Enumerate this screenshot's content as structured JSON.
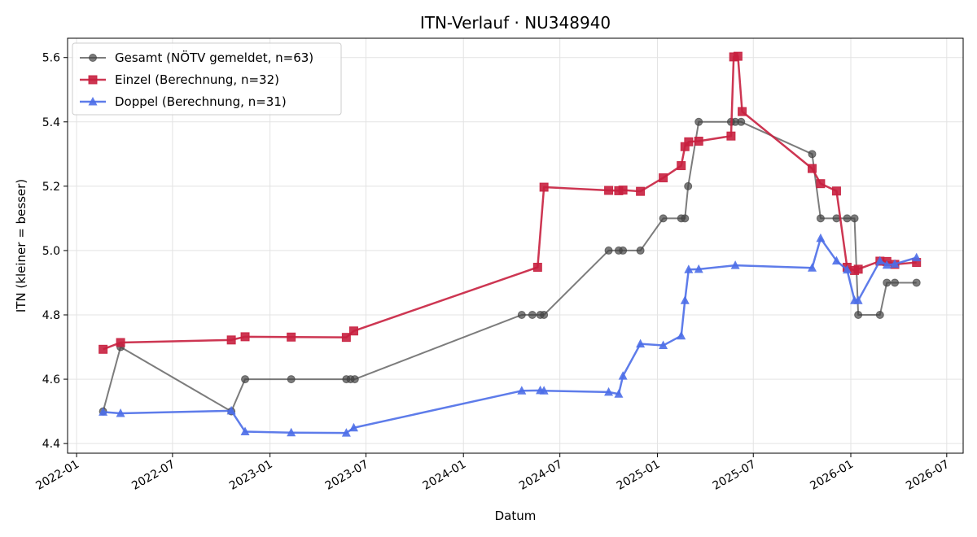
{
  "chart_data": {
    "type": "line",
    "title": "ITN-Verlauf · NU348940",
    "xlabel": "Datum",
    "ylabel": "ITN  (kleiner = besser)",
    "x_type": "date",
    "xlim": [
      "2021-12-15",
      "2026-08-01"
    ],
    "ylim": [
      4.37,
      5.66
    ],
    "x_ticks": [
      "2022-01",
      "2022-07",
      "2023-01",
      "2023-07",
      "2024-01",
      "2024-07",
      "2025-01",
      "2025-07",
      "2026-01",
      "2026-07"
    ],
    "y_ticks": [
      4.4,
      4.6,
      4.8,
      5.0,
      5.2,
      5.4,
      5.6
    ],
    "grid": true,
    "legend_position": "top-left",
    "series": [
      {
        "name": "Gesamt (NÖTV gemeldet, n=63)",
        "color": "#444444",
        "marker": "circle",
        "points": [
          [
            "2022-02-20",
            4.5
          ],
          [
            "2022-03-25",
            4.7
          ],
          [
            "2022-10-20",
            4.5
          ],
          [
            "2022-11-15",
            4.6
          ],
          [
            "2023-02-10",
            4.6
          ],
          [
            "2023-05-25",
            4.6
          ],
          [
            "2023-06-02",
            4.6
          ],
          [
            "2023-06-10",
            4.6
          ],
          [
            "2024-04-20",
            4.8
          ],
          [
            "2024-05-10",
            4.8
          ],
          [
            "2024-05-25",
            4.8
          ],
          [
            "2024-06-01",
            4.8
          ],
          [
            "2024-10-01",
            5.0
          ],
          [
            "2024-10-20",
            5.0
          ],
          [
            "2024-10-28",
            5.0
          ],
          [
            "2024-11-30",
            5.0
          ],
          [
            "2025-01-12",
            5.1
          ],
          [
            "2025-02-15",
            5.1
          ],
          [
            "2025-02-22",
            5.1
          ],
          [
            "2025-02-28",
            5.2
          ],
          [
            "2025-03-20",
            5.4
          ],
          [
            "2025-05-20",
            5.4
          ],
          [
            "2025-05-28",
            5.4
          ],
          [
            "2025-06-08",
            5.4
          ],
          [
            "2025-10-20",
            5.3
          ],
          [
            "2025-11-05",
            5.1
          ],
          [
            "2025-12-05",
            5.1
          ],
          [
            "2025-12-25",
            5.1
          ],
          [
            "2026-01-08",
            5.1
          ],
          [
            "2026-01-15",
            4.8
          ],
          [
            "2026-02-25",
            4.8
          ],
          [
            "2026-03-10",
            4.9
          ],
          [
            "2026-03-25",
            4.9
          ],
          [
            "2026-05-05",
            4.9
          ]
        ]
      },
      {
        "name": "Einzel (Berechnung, n=32)",
        "color": "#c8203f",
        "marker": "square",
        "points": [
          [
            "2022-02-20",
            4.693
          ],
          [
            "2022-03-25",
            4.714
          ],
          [
            "2022-10-20",
            4.722
          ],
          [
            "2022-11-15",
            4.732
          ],
          [
            "2023-02-10",
            4.731
          ],
          [
            "2023-05-25",
            4.73
          ],
          [
            "2023-06-08",
            4.75
          ],
          [
            "2024-05-20",
            4.948
          ],
          [
            "2024-06-01",
            5.197
          ],
          [
            "2024-10-01",
            5.187
          ],
          [
            "2024-10-20",
            5.186
          ],
          [
            "2024-10-28",
            5.188
          ],
          [
            "2024-11-30",
            5.184
          ],
          [
            "2025-01-12",
            5.226
          ],
          [
            "2025-02-15",
            5.264
          ],
          [
            "2025-02-22",
            5.323
          ],
          [
            "2025-03-01",
            5.338
          ],
          [
            "2025-03-20",
            5.34
          ],
          [
            "2025-05-20",
            5.356
          ],
          [
            "2025-05-25",
            5.602
          ],
          [
            "2025-06-02",
            5.604
          ],
          [
            "2025-06-10",
            5.432
          ],
          [
            "2025-10-20",
            5.255
          ],
          [
            "2025-11-05",
            5.208
          ],
          [
            "2025-12-05",
            5.185
          ],
          [
            "2025-12-25",
            4.948
          ],
          [
            "2026-01-08",
            4.938
          ],
          [
            "2026-01-15",
            4.942
          ],
          [
            "2026-02-25",
            4.967
          ],
          [
            "2026-03-10",
            4.966
          ],
          [
            "2026-03-25",
            4.957
          ],
          [
            "2026-05-05",
            4.963
          ]
        ]
      },
      {
        "name": "Doppel (Berechnung, n=31)",
        "color": "#4c6ee8",
        "marker": "triangle",
        "points": [
          [
            "2022-02-20",
            4.498
          ],
          [
            "2022-03-25",
            4.494
          ],
          [
            "2022-10-20",
            4.502
          ],
          [
            "2022-11-15",
            4.437
          ],
          [
            "2023-02-10",
            4.434
          ],
          [
            "2023-05-25",
            4.433
          ],
          [
            "2023-06-08",
            4.449
          ],
          [
            "2024-04-20",
            4.564
          ],
          [
            "2024-05-25",
            4.565
          ],
          [
            "2024-06-01",
            4.564
          ],
          [
            "2024-10-01",
            4.56
          ],
          [
            "2024-10-20",
            4.554
          ],
          [
            "2024-10-28",
            4.61
          ],
          [
            "2024-11-30",
            4.71
          ],
          [
            "2025-01-12",
            4.705
          ],
          [
            "2025-02-15",
            4.735
          ],
          [
            "2025-02-22",
            4.845
          ],
          [
            "2025-03-01",
            4.941
          ],
          [
            "2025-03-20",
            4.942
          ],
          [
            "2025-05-28",
            4.954
          ],
          [
            "2025-10-20",
            4.946
          ],
          [
            "2025-11-05",
            5.038
          ],
          [
            "2025-12-05",
            4.968
          ],
          [
            "2025-12-25",
            4.94
          ],
          [
            "2026-01-08",
            4.845
          ],
          [
            "2026-01-15",
            4.845
          ],
          [
            "2026-02-25",
            4.968
          ],
          [
            "2026-03-10",
            4.955
          ],
          [
            "2026-03-25",
            4.958
          ],
          [
            "2026-05-05",
            4.978
          ]
        ]
      }
    ]
  }
}
